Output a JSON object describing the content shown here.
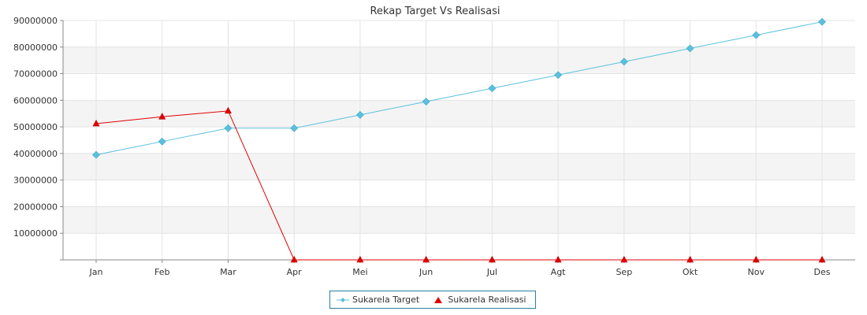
{
  "chart_data": {
    "type": "line",
    "title": "Rekap Target Vs Realisasi",
    "categories": [
      "Jan",
      "Feb",
      "Mar",
      "Apr",
      "Mei",
      "Jun",
      "Jul",
      "Agt",
      "Sep",
      "Okt",
      "Nov",
      "Des"
    ],
    "ylim": [
      0,
      90000000
    ],
    "yticks": [
      "10000000",
      "20000000",
      "30000000",
      "40000000",
      "50000000",
      "60000000",
      "70000000",
      "80000000",
      "90000000"
    ],
    "grid": true,
    "legend_placement": "bottom-center",
    "series": [
      {
        "name": "Sukarela Target",
        "color": "#5bc0de",
        "marker": "diamond",
        "values": [
          39500000,
          44500000,
          49500000,
          49500000,
          54500000,
          59500000,
          64500000,
          69500000,
          74500000,
          79500000,
          84500000,
          89500000
        ]
      },
      {
        "name": "Sukarela Realisasi",
        "color": "#e00000",
        "marker": "triangle",
        "values": [
          51200000,
          53800000,
          56000000,
          0,
          0,
          0,
          0,
          0,
          0,
          0,
          0,
          0
        ]
      }
    ]
  }
}
